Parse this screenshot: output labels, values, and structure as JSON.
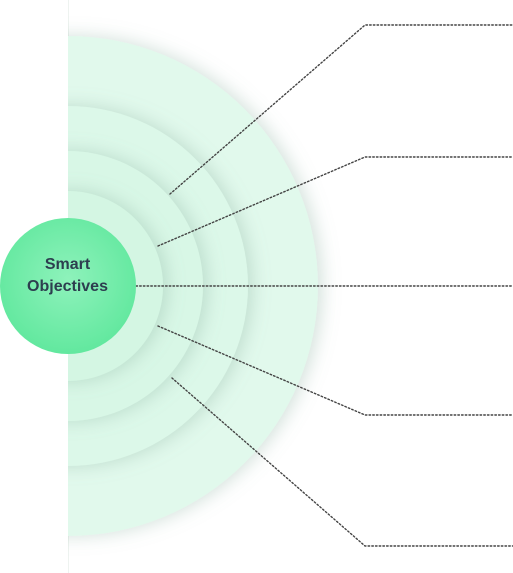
{
  "center": {
    "label": "Smart\nObjectives"
  },
  "colors": {
    "center_fill": "#63e8a1",
    "ring_fill": "#dbf8e8",
    "connector": "#444444",
    "background": "#ffffff",
    "text": "#2d3e4f"
  },
  "connectors": [
    {
      "id": "connector-1"
    },
    {
      "id": "connector-2"
    },
    {
      "id": "connector-3"
    },
    {
      "id": "connector-4"
    },
    {
      "id": "connector-5"
    }
  ]
}
